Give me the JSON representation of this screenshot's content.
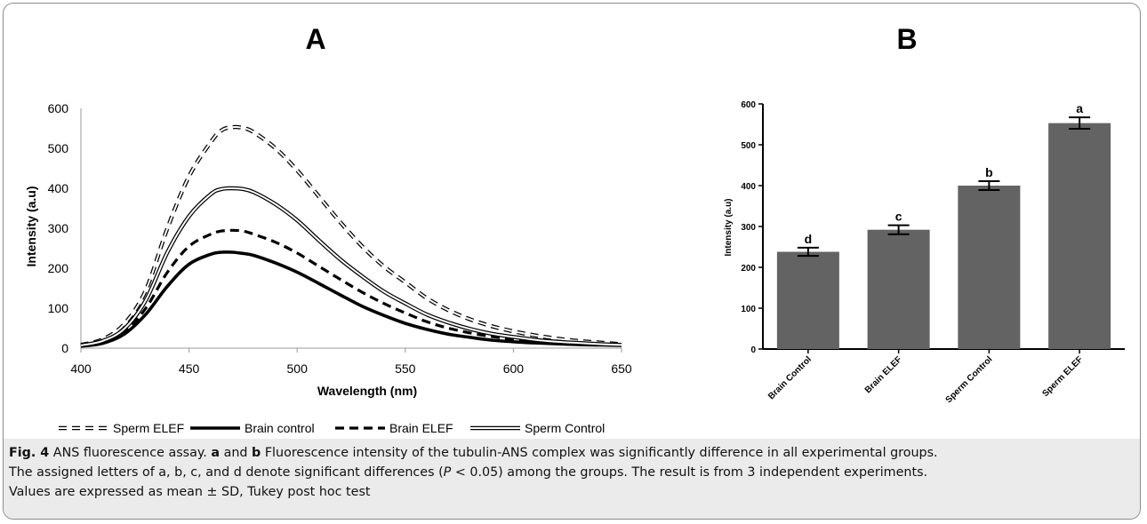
{
  "colors": {
    "bar_fill": "#636363",
    "frame": "#8c8c8c",
    "caption_bg": "#ebebeb"
  },
  "chart_data": [
    {
      "panel": "A",
      "type": "line",
      "title": "A",
      "xlabel": "Wavelength (nm)",
      "ylabel": "Intensity (a.u)",
      "xlim": [
        400,
        650
      ],
      "ylim": [
        0,
        600
      ],
      "xticks": [
        400,
        450,
        500,
        550,
        600,
        650
      ],
      "yticks": [
        0,
        100,
        200,
        300,
        400,
        500,
        600
      ],
      "grid": false,
      "legend_position": "bottom",
      "x": [
        400,
        410,
        420,
        430,
        440,
        450,
        460,
        465,
        470,
        475,
        480,
        490,
        500,
        510,
        520,
        530,
        540,
        550,
        560,
        570,
        580,
        590,
        600,
        610,
        620,
        630,
        640,
        650
      ],
      "series": [
        {
          "name": "Sperm ELEF",
          "style": "dashed-double",
          "values": [
            8,
            22,
            60,
            145,
            300,
            430,
            515,
            545,
            553,
            551,
            540,
            500,
            445,
            380,
            315,
            255,
            205,
            165,
            125,
            95,
            72,
            55,
            42,
            32,
            24,
            18,
            14,
            10
          ]
        },
        {
          "name": "Brain control",
          "style": "solid-thick",
          "values": [
            5,
            12,
            35,
            85,
            155,
            210,
            235,
            240,
            240,
            237,
            232,
            213,
            190,
            162,
            133,
            105,
            82,
            62,
            47,
            35,
            27,
            20,
            16,
            13,
            11,
            9,
            8,
            7
          ]
        },
        {
          "name": "Brain ELEF",
          "style": "dashed-thick",
          "values": [
            6,
            14,
            40,
            100,
            190,
            255,
            285,
            293,
            295,
            293,
            285,
            265,
            238,
            205,
            172,
            140,
            112,
            88,
            66,
            50,
            38,
            29,
            22,
            17,
            13,
            11,
            9,
            8
          ]
        },
        {
          "name": "Sperm Control",
          "style": "solid-double",
          "values": [
            7,
            18,
            48,
            120,
            240,
            330,
            385,
            398,
            400,
            398,
            390,
            360,
            320,
            270,
            222,
            180,
            142,
            112,
            84,
            64,
            48,
            36,
            28,
            21,
            16,
            13,
            10,
            8
          ]
        }
      ]
    },
    {
      "panel": "B",
      "type": "bar",
      "title": "B",
      "ylabel": "Intensity (a.u)",
      "ylim": [
        0,
        600
      ],
      "yticks": [
        0,
        100,
        200,
        300,
        400,
        500,
        600
      ],
      "grid": false,
      "categories": [
        "Brain Control",
        "Brain ELEF",
        "Sperm Control",
        "Sperm ELEF"
      ],
      "values": [
        238,
        292,
        400,
        553
      ],
      "errors": [
        10,
        11,
        11,
        14
      ],
      "letters": [
        "d",
        "c",
        "b",
        "a"
      ]
    }
  ],
  "caption": {
    "label": "Fig. 4",
    "lead": " ANS fluorescence assay. ",
    "a": "a",
    "and": " and ",
    "b": "b",
    "line1_rest": " Fluorescence intensity of the tubulin-ANS complex was significantly difference in all experimental groups.",
    "line2_pre": "The assigned letters of a, b, c, and d denote significant differences (",
    "p_symbol": "P",
    "line2_post": " < 0.05) among the groups. The result is from 3 independent experiments.",
    "line3": "Values are expressed as mean ± SD, Tukey post hoc test"
  }
}
